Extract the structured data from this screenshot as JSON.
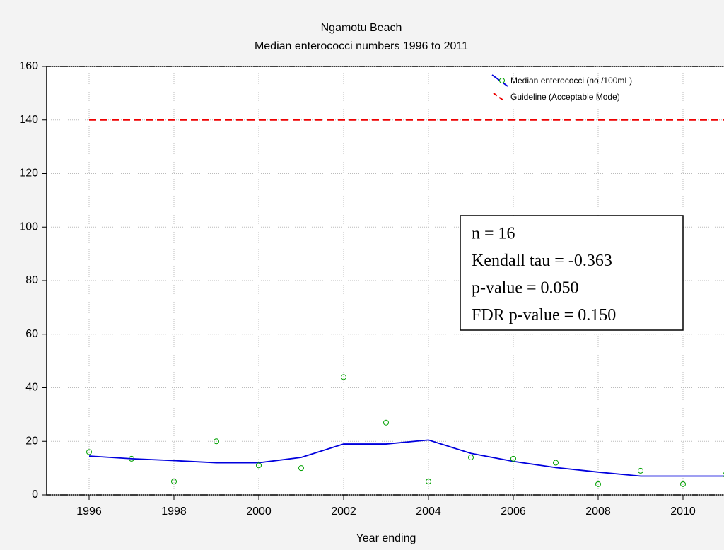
{
  "chart_data": {
    "type": "scatter",
    "title": "Ngamotu Beach",
    "subtitle": "Median enterococci numbers 1996 to 2011",
    "x_label": "Year ending",
    "x": [
      1996,
      1997,
      1998,
      1999,
      2000,
      2001,
      2002,
      2003,
      2004,
      2005,
      2006,
      2007,
      2008,
      2009,
      2010,
      2011
    ],
    "series": [
      {
        "name": "Median enterococci (no./100mL)",
        "color": "#00a000",
        "line_color": "#0000dd",
        "values": [
          16,
          13.5,
          5,
          20,
          11,
          10,
          44,
          27,
          5,
          14,
          13.5,
          12,
          4,
          9,
          4,
          7.5
        ],
        "smooth": [
          14.5,
          13.5,
          12.8,
          12,
          12,
          14,
          19,
          19,
          20.5,
          15.5,
          12.5,
          10.2,
          8.5,
          7,
          7,
          7
        ]
      },
      {
        "name": "Guideline (Acceptable Mode)",
        "color": "#ee0000",
        "values": [
          140,
          140,
          140,
          140,
          140,
          140,
          140,
          140,
          140,
          140,
          140,
          140,
          140,
          140,
          140,
          140
        ]
      }
    ],
    "annotations": [
      "n = 16",
      "Kendall tau = -0.363",
      "p-value = 0.050",
      "FDR p-value = 0.150"
    ],
    "xlim": [
      1995,
      2011
    ],
    "xticks": [
      1996,
      1998,
      2000,
      2002,
      2004,
      2006,
      2008,
      2010
    ],
    "ylim": [
      0,
      160
    ],
    "yticks": [
      0,
      20,
      40,
      60,
      80,
      100,
      120,
      140,
      160
    ],
    "grid": true,
    "legend": "upper right"
  }
}
